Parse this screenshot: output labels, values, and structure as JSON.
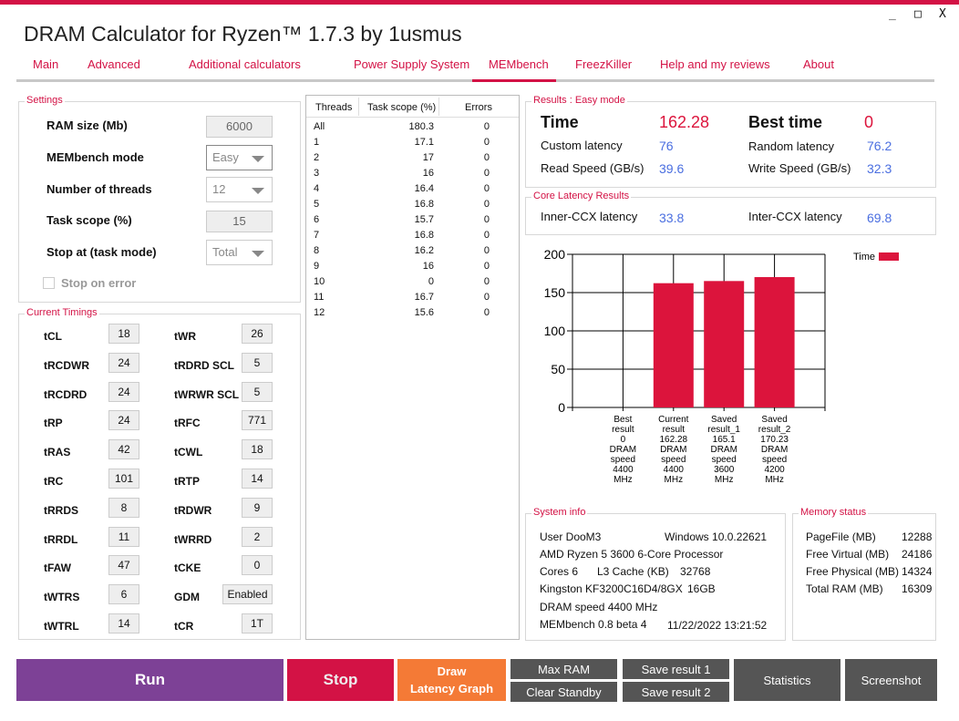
{
  "window": {
    "title": "DRAM Calculator for Ryzen™ 1.7.3 by 1usmus",
    "minimize": "_",
    "maximize": "□",
    "close": "X"
  },
  "tabs": [
    "Main",
    "Advanced",
    "Additional calculators",
    "Power Supply System",
    "MEMbench",
    "FreezKiller",
    "Help and my reviews",
    "About"
  ],
  "active_tab": "MEMbench",
  "settings": {
    "title": "Settings",
    "ram_size_label": "RAM size (Mb)",
    "ram_size": "6000",
    "mode_label": "MEMbench mode",
    "mode": "Easy",
    "threads_label": "Number of threads",
    "threads": "12",
    "scope_label": "Task scope (%)",
    "scope": "15",
    "stop_label": "Stop at (task mode)",
    "stop": "Total",
    "stop_on_error": "Stop on error"
  },
  "timings": {
    "title": "Current Timings",
    "left": [
      [
        "tCL",
        "18"
      ],
      [
        "tRCDWR",
        "24"
      ],
      [
        "tRCDRD",
        "24"
      ],
      [
        "tRP",
        "24"
      ],
      [
        "tRAS",
        "42"
      ],
      [
        "tRC",
        "101"
      ],
      [
        "tRRDS",
        "8"
      ],
      [
        "tRRDL",
        "11"
      ],
      [
        "tFAW",
        "47"
      ],
      [
        "tWTRS",
        "6"
      ],
      [
        "tWTRL",
        "14"
      ]
    ],
    "right": [
      [
        "tWR",
        "26"
      ],
      [
        "tRDRD SCL",
        "5"
      ],
      [
        "tWRWR SCL",
        "5"
      ],
      [
        "tRFC",
        "771"
      ],
      [
        "tCWL",
        "18"
      ],
      [
        "tRTP",
        "14"
      ],
      [
        "tRDWR",
        "9"
      ],
      [
        "tWRRD",
        "2"
      ],
      [
        "tCKE",
        "0"
      ],
      [
        "GDM",
        "Enabled"
      ],
      [
        "tCR",
        "1T"
      ]
    ]
  },
  "threads_table": {
    "headers": [
      "Threads",
      "Task scope (%)",
      "Errors"
    ],
    "rows": [
      [
        "All",
        "180.3",
        "0"
      ],
      [
        "1",
        "17.1",
        "0"
      ],
      [
        "2",
        "17",
        "0"
      ],
      [
        "3",
        "16",
        "0"
      ],
      [
        "4",
        "16.4",
        "0"
      ],
      [
        "5",
        "16.8",
        "0"
      ],
      [
        "6",
        "15.7",
        "0"
      ],
      [
        "7",
        "16.8",
        "0"
      ],
      [
        "8",
        "16.2",
        "0"
      ],
      [
        "9",
        "16",
        "0"
      ],
      [
        "10",
        "0",
        "0"
      ],
      [
        "11",
        "16.7",
        "0"
      ],
      [
        "12",
        "15.6",
        "0"
      ]
    ]
  },
  "results": {
    "title": "Results : Easy mode",
    "time_label": "Time",
    "time": "162.28",
    "best_label": "Best time",
    "best": "0",
    "custom_label": "Custom latency",
    "custom": "76",
    "random_label": "Random latency",
    "random": "76.2",
    "read_label": "Read Speed (GB/s)",
    "read": "39.6",
    "write_label": "Write Speed (GB/s)",
    "write": "32.3"
  },
  "core": {
    "title": "Core Latency Results",
    "inner_label": "Inner-CCX latency",
    "inner": "33.8",
    "inter_label": "Inter-CCX latency",
    "inter": "69.8"
  },
  "chart_data": {
    "type": "bar",
    "categories": [
      [
        "Best",
        "result",
        "0",
        "DRAM",
        "speed",
        "4400",
        "MHz"
      ],
      [
        "Current",
        "result",
        "162.28",
        "DRAM",
        "speed",
        "4400",
        "MHz"
      ],
      [
        "Saved",
        "result_1",
        "165.1",
        "DRAM",
        "speed",
        "3600",
        "MHz"
      ],
      [
        "Saved",
        "result_2",
        "170.23",
        "DRAM",
        "speed",
        "4200",
        "MHz"
      ]
    ],
    "values": [
      0,
      162.28,
      165.1,
      170.23
    ],
    "series_name": "Time",
    "ylim": [
      0,
      200
    ],
    "yticks": [
      "0",
      "50",
      "100",
      "150",
      "200"
    ],
    "color": "#dc143c",
    "legend": "top-right",
    "grid": true
  },
  "sysinfo": {
    "title": "System info",
    "user": "User DooM3",
    "os": "Windows 10.0.22621",
    "cpu": "AMD Ryzen 5 3600 6-Core Processor",
    "cores": "Cores 6",
    "l3_label": "L3 Cache (KB)",
    "l3": "32768",
    "ram": "Kingston KF3200C16D4/8GX",
    "ram_size": "16GB",
    "speed": "DRAM speed 4400 MHz",
    "version": "MEMbench 0.8 beta 4",
    "datetime": "11/22/2022 13:21:52"
  },
  "memory": {
    "title": "Memory status",
    "rows": [
      [
        "PageFile (MB)",
        "12288"
      ],
      [
        "Free Virtual (MB)",
        "24186"
      ],
      [
        "Free Physical (MB)",
        "14324"
      ],
      [
        "Total RAM (MB)",
        "16309"
      ]
    ]
  },
  "buttons": {
    "run": "Run",
    "stop": "Stop",
    "draw1": "Draw",
    "draw2": "Latency Graph",
    "maxram": "Max RAM",
    "clear": "Clear Standby",
    "save1": "Save result 1",
    "save2": "Save result 2",
    "stats": "Statistics",
    "screenshot": "Screenshot"
  }
}
